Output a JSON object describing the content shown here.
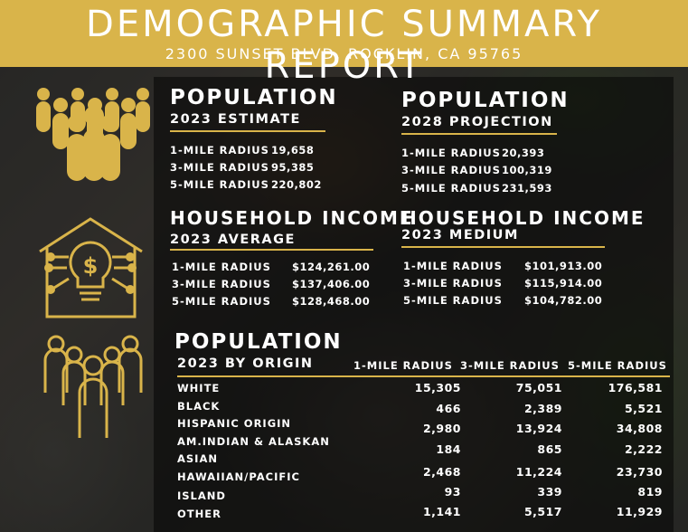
{
  "header": {
    "title": "DEMOGRAPHIC SUMMARY REPORT",
    "address": "2300 SUNSET BLVD, ROCKLIN, CA 95765"
  },
  "colors": {
    "accent": "#d9b44a",
    "text": "#ffffff"
  },
  "icons": [
    "people-group-icon",
    "house-lightbulb-dollar-icon",
    "people-outline-icon"
  ],
  "pop2023": {
    "title": "POPULATION",
    "subtitle": "2023 ESTIMATE",
    "rows": [
      {
        "label": "1-MILE RADIUS",
        "value": "19,658"
      },
      {
        "label": "3-MILE RADIUS",
        "value": "95,385"
      },
      {
        "label": "5-MILE RADIUS",
        "value": "220,802"
      }
    ]
  },
  "pop2028": {
    "title": "POPULATION",
    "subtitle": "2028 PROJECTION",
    "rows": [
      {
        "label": "1-MILE RADIUS",
        "value": "20,393"
      },
      {
        "label": "3-MILE RADIUS",
        "value": "100,319"
      },
      {
        "label": "5-MILE RADIUS",
        "value": "231,593"
      }
    ]
  },
  "incAvg": {
    "title": "HOUSEHOLD INCOME",
    "subtitle": "2023 AVERAGE",
    "rows": [
      {
        "label": "1-MILE RADIUS",
        "value": "$124,261.00"
      },
      {
        "label": "3-MILE RADIUS",
        "value": "$137,406.00"
      },
      {
        "label": "5-MILE RADIUS",
        "value": "$128,468.00"
      }
    ]
  },
  "incMed": {
    "title": "HOUSEHOLD INCOME",
    "subtitle": "2023 MEDIUM",
    "rows": [
      {
        "label": "1-MILE RADIUS",
        "value": "$101,913.00"
      },
      {
        "label": "3-MILE RADIUS",
        "value": "$115,914.00"
      },
      {
        "label": "5-MILE RADIUS",
        "value": "$104,782.00"
      }
    ]
  },
  "origin": {
    "title": "POPULATION",
    "subtitle": "2023 BY ORIGIN",
    "columns": [
      "1-MILE RADIUS",
      "3-MILE RADIUS",
      "5-MILE RADIUS"
    ],
    "rows": [
      {
        "label": "WHITE",
        "v1": "15,305",
        "v3": "75,051",
        "v5": "176,581"
      },
      {
        "label": "BLACK",
        "v1": "466",
        "v3": "2,389",
        "v5": "5,521"
      },
      {
        "label": "HISPANIC ORIGIN",
        "v1": "2,980",
        "v3": "13,924",
        "v5": "34,808"
      },
      {
        "label": "AM.INDIAN & ALASKAN",
        "v1": "184",
        "v3": "865",
        "v5": "2,222"
      },
      {
        "label": "ASIAN",
        "v1": "",
        "v3": "",
        "v5": ""
      },
      {
        "label": "HAWAIIAN/PACIFIC",
        "v1": "2,468",
        "v3": "11,224",
        "v5": "23,730"
      },
      {
        "label": "ISLAND",
        "v1": "93",
        "v3": "339",
        "v5": "819"
      },
      {
        "label": "OTHER",
        "v1": "1,141",
        "v3": "5,517",
        "v5": "11,929"
      }
    ]
  }
}
